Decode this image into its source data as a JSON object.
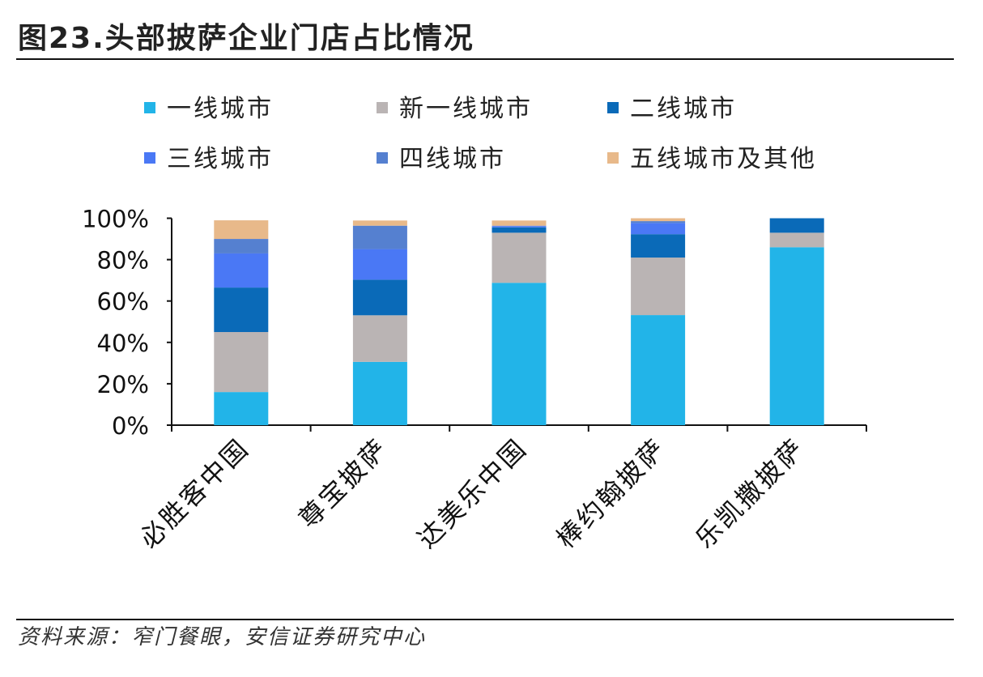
{
  "title": "图23.头部披萨企业门店占比情况",
  "source": "资料来源：窄门餐眼，安信证券研究中心",
  "chart_data": {
    "type": "bar",
    "stacked": true,
    "categories": [
      "必胜客中国",
      "尊宝披萨",
      "达美乐中国",
      "棒约翰披萨",
      "乐凯撒披萨"
    ],
    "series": [
      {
        "name": "一线城市",
        "color": "#22b4e8",
        "values": [
          16,
          30.6,
          68.8,
          53.2,
          86
        ]
      },
      {
        "name": "新一线城市",
        "color": "#bab4b4",
        "values": [
          29,
          22.5,
          24.2,
          27.8,
          7
        ]
      },
      {
        "name": "二线城市",
        "color": "#0a6ab8",
        "values": [
          21.5,
          17.2,
          2.6,
          11.3,
          7
        ]
      },
      {
        "name": "三线城市",
        "color": "#4a78f5",
        "values": [
          16.5,
          14.8,
          0.6,
          5.4,
          0
        ]
      },
      {
        "name": "四线城市",
        "color": "#5580d0",
        "values": [
          7,
          11.3,
          0.2,
          0.9,
          0
        ]
      },
      {
        "name": "五线城市及其他",
        "color": "#e8b98a",
        "values": [
          9,
          2.5,
          2.5,
          1.4,
          0
        ]
      }
    ],
    "yticks": [
      "0%",
      "20%",
      "40%",
      "60%",
      "80%",
      "100%"
    ],
    "ylim": [
      0,
      100
    ],
    "legend": "top",
    "grid": false
  }
}
